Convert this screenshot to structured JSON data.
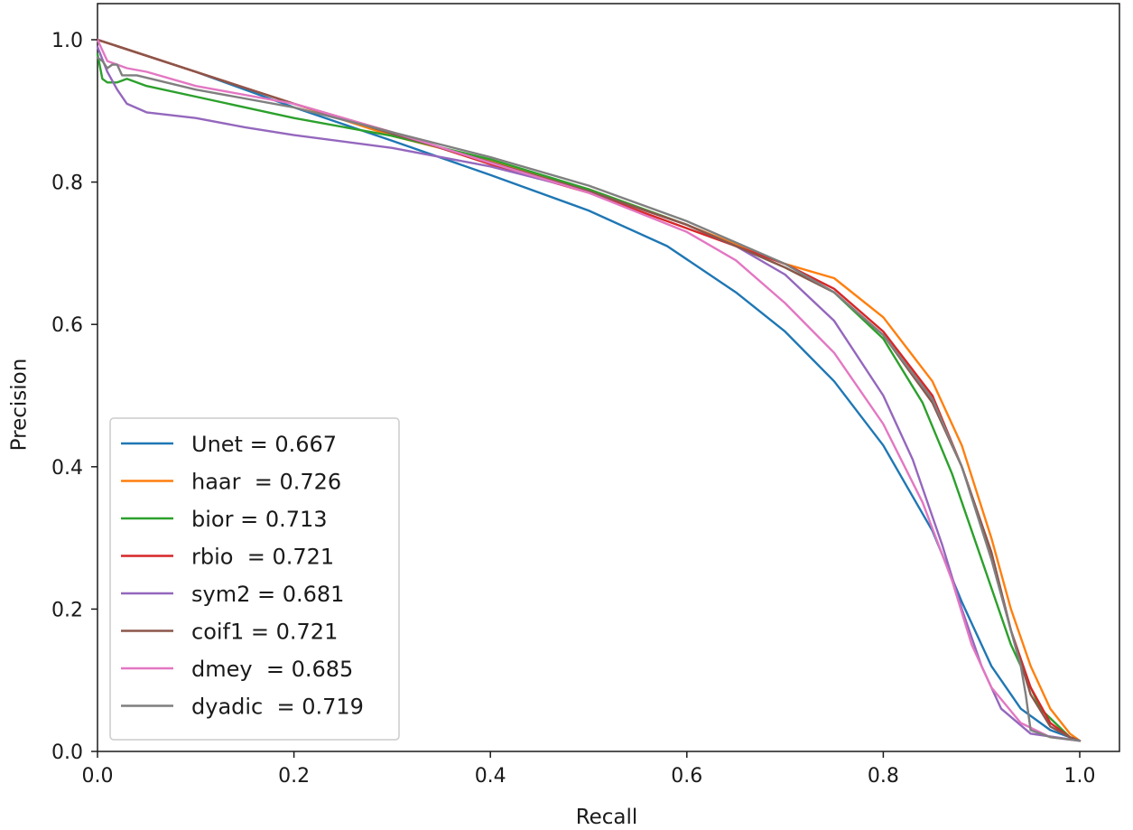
{
  "chart_data": {
    "type": "line",
    "title": "",
    "xlabel": "Recall",
    "ylabel": "Precision",
    "xlim": [
      0.0,
      1.0
    ],
    "ylim": [
      0.0,
      1.0
    ],
    "xticks": [
      "0.0",
      "0.2",
      "0.4",
      "0.6",
      "0.8",
      "1.0"
    ],
    "yticks": [
      "0.0",
      "0.2",
      "0.4",
      "0.6",
      "0.8",
      "1.0"
    ],
    "grid": false,
    "legend_position": "lower-left",
    "series": [
      {
        "name": "Unet",
        "legend_label": "Unet = 0.667",
        "color": "#1f77b4",
        "points": [
          [
            0,
            1.0
          ],
          [
            0.1,
            0.955
          ],
          [
            0.2,
            0.905
          ],
          [
            0.3,
            0.858
          ],
          [
            0.4,
            0.81
          ],
          [
            0.5,
            0.76
          ],
          [
            0.58,
            0.71
          ],
          [
            0.65,
            0.645
          ],
          [
            0.7,
            0.59
          ],
          [
            0.75,
            0.52
          ],
          [
            0.8,
            0.43
          ],
          [
            0.85,
            0.31
          ],
          [
            0.88,
            0.21
          ],
          [
            0.91,
            0.12
          ],
          [
            0.94,
            0.06
          ],
          [
            0.97,
            0.03
          ],
          [
            1.0,
            0.015
          ]
        ]
      },
      {
        "name": "haar",
        "legend_label": "haar  = 0.726",
        "color": "#ff7f0e",
        "points": [
          [
            0,
            1.0
          ],
          [
            0.1,
            0.955
          ],
          [
            0.2,
            0.91
          ],
          [
            0.3,
            0.865
          ],
          [
            0.4,
            0.83
          ],
          [
            0.5,
            0.79
          ],
          [
            0.6,
            0.74
          ],
          [
            0.7,
            0.685
          ],
          [
            0.75,
            0.665
          ],
          [
            0.8,
            0.61
          ],
          [
            0.85,
            0.52
          ],
          [
            0.88,
            0.43
          ],
          [
            0.91,
            0.3
          ],
          [
            0.93,
            0.2
          ],
          [
            0.95,
            0.12
          ],
          [
            0.97,
            0.06
          ],
          [
            0.99,
            0.025
          ],
          [
            1.0,
            0.015
          ]
        ]
      },
      {
        "name": "bior",
        "legend_label": "bior = 0.713",
        "color": "#2ca02c",
        "points": [
          [
            0,
            0.98
          ],
          [
            0.005,
            0.945
          ],
          [
            0.01,
            0.94
          ],
          [
            0.02,
            0.94
          ],
          [
            0.03,
            0.945
          ],
          [
            0.05,
            0.935
          ],
          [
            0.1,
            0.92
          ],
          [
            0.2,
            0.89
          ],
          [
            0.3,
            0.865
          ],
          [
            0.4,
            0.832
          ],
          [
            0.5,
            0.79
          ],
          [
            0.6,
            0.74
          ],
          [
            0.7,
            0.68
          ],
          [
            0.75,
            0.645
          ],
          [
            0.8,
            0.58
          ],
          [
            0.84,
            0.49
          ],
          [
            0.87,
            0.39
          ],
          [
            0.9,
            0.27
          ],
          [
            0.93,
            0.15
          ],
          [
            0.96,
            0.06
          ],
          [
            0.99,
            0.02
          ],
          [
            1.0,
            0.015
          ]
        ]
      },
      {
        "name": "rbio",
        "legend_label": "rbio  = 0.721",
        "color": "#d62728",
        "points": [
          [
            0,
            1.0
          ],
          [
            0.1,
            0.955
          ],
          [
            0.2,
            0.91
          ],
          [
            0.3,
            0.87
          ],
          [
            0.4,
            0.825
          ],
          [
            0.5,
            0.785
          ],
          [
            0.6,
            0.735
          ],
          [
            0.7,
            0.685
          ],
          [
            0.75,
            0.65
          ],
          [
            0.8,
            0.59
          ],
          [
            0.85,
            0.5
          ],
          [
            0.88,
            0.4
          ],
          [
            0.91,
            0.28
          ],
          [
            0.93,
            0.17
          ],
          [
            0.95,
            0.09
          ],
          [
            0.97,
            0.04
          ],
          [
            0.99,
            0.02
          ],
          [
            1.0,
            0.015
          ]
        ]
      },
      {
        "name": "sym2",
        "legend_label": "sym2 = 0.681",
        "color": "#9467bd",
        "points": [
          [
            0,
            0.99
          ],
          [
            0.01,
            0.955
          ],
          [
            0.02,
            0.93
          ],
          [
            0.03,
            0.91
          ],
          [
            0.05,
            0.898
          ],
          [
            0.1,
            0.89
          ],
          [
            0.15,
            0.877
          ],
          [
            0.2,
            0.866
          ],
          [
            0.3,
            0.848
          ],
          [
            0.4,
            0.822
          ],
          [
            0.5,
            0.787
          ],
          [
            0.6,
            0.74
          ],
          [
            0.65,
            0.71
          ],
          [
            0.7,
            0.67
          ],
          [
            0.75,
            0.605
          ],
          [
            0.8,
            0.5
          ],
          [
            0.83,
            0.41
          ],
          [
            0.86,
            0.29
          ],
          [
            0.88,
            0.2
          ],
          [
            0.9,
            0.12
          ],
          [
            0.92,
            0.06
          ],
          [
            0.95,
            0.025
          ],
          [
            1.0,
            0.015
          ]
        ]
      },
      {
        "name": "coif1",
        "legend_label": "coif1 = 0.721",
        "color": "#8c564b",
        "points": [
          [
            0,
            1.0
          ],
          [
            0.1,
            0.955
          ],
          [
            0.2,
            0.91
          ],
          [
            0.3,
            0.868
          ],
          [
            0.4,
            0.828
          ],
          [
            0.5,
            0.787
          ],
          [
            0.6,
            0.74
          ],
          [
            0.7,
            0.68
          ],
          [
            0.75,
            0.645
          ],
          [
            0.8,
            0.585
          ],
          [
            0.85,
            0.49
          ],
          [
            0.88,
            0.4
          ],
          [
            0.91,
            0.28
          ],
          [
            0.93,
            0.17
          ],
          [
            0.95,
            0.08
          ],
          [
            0.97,
            0.035
          ],
          [
            0.99,
            0.02
          ],
          [
            1.0,
            0.015
          ]
        ]
      },
      {
        "name": "dmey",
        "legend_label": "dmey  = 0.685",
        "color": "#e377c2",
        "points": [
          [
            0,
            1.0
          ],
          [
            0.01,
            0.97
          ],
          [
            0.03,
            0.96
          ],
          [
            0.05,
            0.955
          ],
          [
            0.1,
            0.935
          ],
          [
            0.2,
            0.91
          ],
          [
            0.3,
            0.87
          ],
          [
            0.4,
            0.827
          ],
          [
            0.5,
            0.785
          ],
          [
            0.6,
            0.73
          ],
          [
            0.65,
            0.69
          ],
          [
            0.7,
            0.63
          ],
          [
            0.75,
            0.56
          ],
          [
            0.8,
            0.46
          ],
          [
            0.84,
            0.35
          ],
          [
            0.87,
            0.24
          ],
          [
            0.89,
            0.15
          ],
          [
            0.91,
            0.09
          ],
          [
            0.94,
            0.04
          ],
          [
            0.97,
            0.02
          ],
          [
            1.0,
            0.015
          ]
        ]
      },
      {
        "name": "dyadic",
        "legend_label": "dyadic  = 0.719",
        "color": "#7f7f7f",
        "points": [
          [
            0,
            0.975
          ],
          [
            0.005,
            0.97
          ],
          [
            0.01,
            0.96
          ],
          [
            0.015,
            0.965
          ],
          [
            0.02,
            0.965
          ],
          [
            0.025,
            0.95
          ],
          [
            0.04,
            0.95
          ],
          [
            0.1,
            0.93
          ],
          [
            0.2,
            0.905
          ],
          [
            0.3,
            0.87
          ],
          [
            0.4,
            0.835
          ],
          [
            0.5,
            0.795
          ],
          [
            0.6,
            0.745
          ],
          [
            0.7,
            0.685
          ],
          [
            0.75,
            0.645
          ],
          [
            0.8,
            0.585
          ],
          [
            0.85,
            0.495
          ],
          [
            0.88,
            0.4
          ],
          [
            0.91,
            0.27
          ],
          [
            0.93,
            0.17
          ],
          [
            0.94,
            0.12
          ],
          [
            0.945,
            0.08
          ],
          [
            0.95,
            0.03
          ],
          [
            0.97,
            0.02
          ],
          [
            1.0,
            0.015
          ]
        ]
      }
    ]
  }
}
